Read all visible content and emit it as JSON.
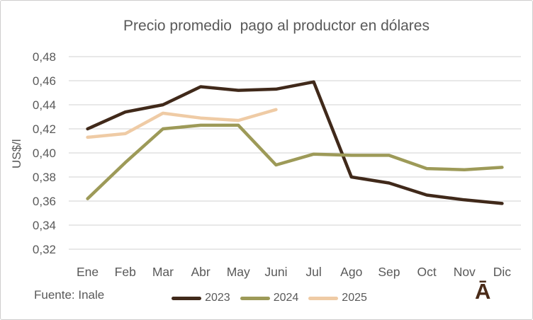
{
  "chart_data": {
    "type": "line",
    "title": "Precio promedio  pago al productor en dólares",
    "xlabel": "",
    "ylabel": "US$/l",
    "categories": [
      "Ene",
      "Feb",
      "Mar",
      "Abr",
      "May",
      "Juni",
      "Jul",
      "Ago",
      "Sep",
      "Oct",
      "Nov",
      "Dic"
    ],
    "ylim": [
      0.32,
      0.48
    ],
    "y_tick_step": 0.02,
    "y_tick_labels": [
      "0,48",
      "0,46",
      "0,44",
      "0,42",
      "0,40",
      "0,38",
      "0,36",
      "0,34",
      "0,32"
    ],
    "grid": true,
    "legend_position": "bottom",
    "series": [
      {
        "name": "2023",
        "color": "#40291a",
        "values": [
          0.42,
          0.434,
          0.44,
          0.455,
          0.452,
          0.453,
          0.459,
          0.38,
          0.375,
          0.365,
          0.361,
          0.358
        ]
      },
      {
        "name": "2024",
        "color": "#9d9a58",
        "values": [
          0.362,
          0.392,
          0.42,
          0.423,
          0.423,
          0.39,
          0.399,
          0.398,
          0.398,
          0.387,
          0.386,
          0.388
        ]
      },
      {
        "name": "2025",
        "color": "#efcba5",
        "values": [
          0.413,
          0.416,
          0.433,
          0.429,
          0.427,
          0.436,
          null,
          null,
          null,
          null,
          null,
          null
        ]
      }
    ]
  },
  "footer": {
    "source": "Fuente: Inale",
    "watermark": "Ā"
  },
  "colors": {
    "text": "#595959",
    "gridline": "#d9d9d9",
    "frame_border": "#cfcdcd",
    "watermark": "#4a2b18"
  }
}
